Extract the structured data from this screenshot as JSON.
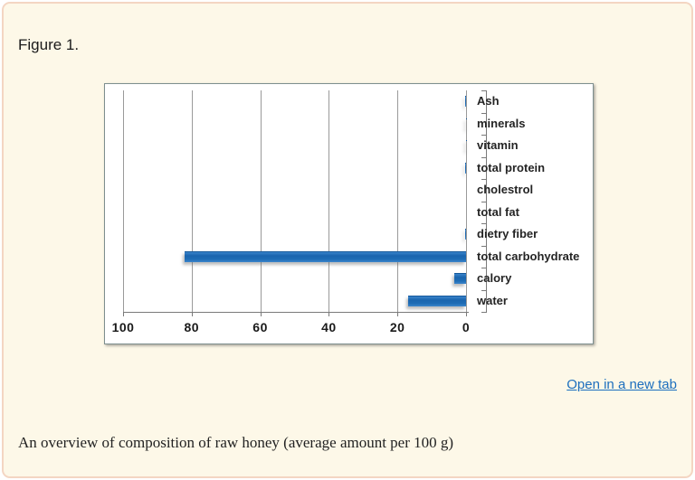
{
  "figure": {
    "label": "Figure 1.",
    "open_link_label": "Open in a new tab",
    "caption": "An overview of composition of raw honey (average amount per 100 g)"
  },
  "colors": {
    "card_background": "#fdf8e8",
    "card_border": "#f4d6c3",
    "bar_blue": "#1e6cb5",
    "link_blue": "#1c6fbe",
    "gridline_gray": "#9a9a9a"
  },
  "chart_data": {
    "type": "bar",
    "orientation": "horizontal",
    "title": "",
    "xlabel": "",
    "ylabel": "",
    "categories": [
      "Ash",
      "minerals",
      "vitamin",
      "total protein",
      "cholestrol",
      "total fat",
      "dietry fiber",
      "total carbohydrate",
      "calory",
      "water"
    ],
    "values": [
      0.2,
      0.1,
      0.1,
      0.3,
      0,
      0,
      0.2,
      82,
      3.5,
      17
    ],
    "xlim": [
      0,
      100
    ],
    "x_ticks": [
      100,
      80,
      60,
      40,
      20,
      0
    ],
    "x_axis_reversed": true,
    "grid": true,
    "legend": false,
    "category_labels_position": "right"
  }
}
